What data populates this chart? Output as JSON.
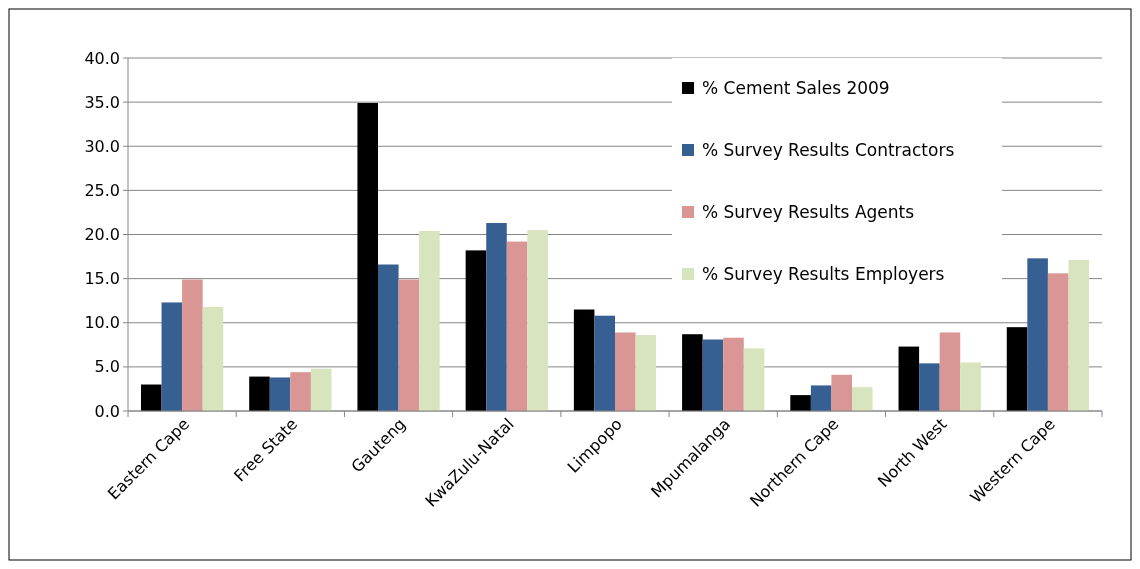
{
  "chart_data": {
    "type": "bar",
    "categories": [
      "Eastern Cape",
      "Free State",
      "Gauteng",
      "KwaZulu-Natal",
      "Limpopo",
      "Mpumalanga",
      "Northern Cape",
      "North West",
      "Western Cape"
    ],
    "series": [
      {
        "name": "% Cement Sales 2009",
        "color": "#000000",
        "values": [
          3.0,
          3.9,
          34.9,
          18.2,
          11.5,
          8.7,
          1.8,
          7.3,
          9.5
        ]
      },
      {
        "name": "% Survey Results Contractors",
        "color": "#376092",
        "values": [
          12.3,
          3.8,
          16.6,
          21.3,
          10.8,
          8.1,
          2.9,
          5.4,
          17.3
        ]
      },
      {
        "name": "% Survey Results Agents",
        "color": "#d99694",
        "values": [
          14.9,
          4.4,
          14.9,
          19.2,
          8.9,
          8.3,
          4.1,
          8.9,
          15.6
        ]
      },
      {
        "name": "% Survey Results Employers",
        "color": "#d7e4bd",
        "values": [
          11.8,
          4.8,
          20.4,
          20.5,
          8.6,
          7.1,
          2.7,
          5.5,
          17.1
        ]
      }
    ],
    "ylim": [
      0,
      40
    ],
    "yticks": [
      {
        "value": 0,
        "label": "0.0"
      },
      {
        "value": 5,
        "label": "5.0"
      },
      {
        "value": 10,
        "label": "10.0"
      },
      {
        "value": 15,
        "label": "15.0"
      },
      {
        "value": 20,
        "label": "20.0"
      },
      {
        "value": 25,
        "label": "25.0"
      },
      {
        "value": 30,
        "label": "30.0"
      },
      {
        "value": 35,
        "label": "35.0"
      },
      {
        "value": 40,
        "label": "40.0"
      }
    ],
    "grid": "y",
    "legend": "top right"
  }
}
